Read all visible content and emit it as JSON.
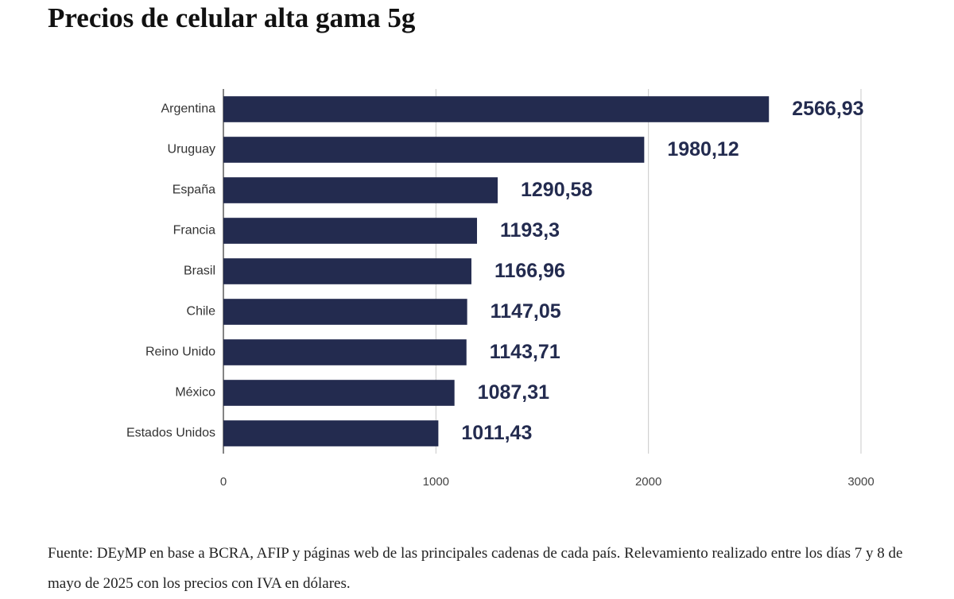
{
  "chart_data": {
    "type": "bar",
    "orientation": "horizontal",
    "title": "Precios de celular alta gama 5g",
    "categories": [
      "Argentina",
      "Uruguay",
      "España",
      "Francia",
      "Brasil",
      "Chile",
      "Reino Unido",
      "México",
      "Estados Unidos"
    ],
    "values": [
      2566.93,
      1980.12,
      1290.58,
      1193.3,
      1166.96,
      1147.05,
      1143.71,
      1087.31,
      1011.43
    ],
    "value_labels": [
      "2566,93",
      "1980,12",
      "1290,58",
      "1193,3",
      "1166,96",
      "1147,05",
      "1143,71",
      "1087,31",
      "1011,43"
    ],
    "color": "#232b4f",
    "xlim": [
      0,
      3000
    ],
    "xticks": [
      0,
      1000,
      2000,
      3000
    ],
    "grid": true,
    "note": "Fuente: DEyMP en base a BCRA, AFIP y páginas web de las principales cadenas de cada país. Relevamiento realizado entre los días 7 y 8 de mayo de 2025 con los precios con IVA en dólares."
  }
}
